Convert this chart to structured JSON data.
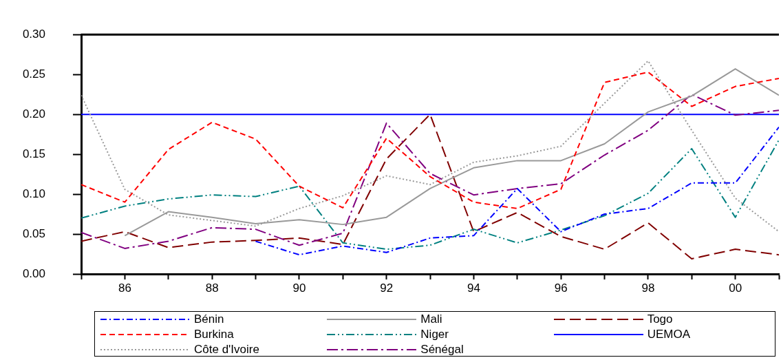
{
  "chart_data": {
    "type": "line",
    "x": [
      1985,
      1986,
      1987,
      1988,
      1989,
      1990,
      1991,
      1992,
      1993,
      1994,
      1995,
      1996,
      1997,
      1998,
      1999,
      2000,
      2001
    ],
    "series": [
      {
        "name": "Bénin",
        "color": "#0000ff",
        "line_style": "dashdot",
        "values": [
          null,
          null,
          null,
          null,
          0.041,
          0.024,
          0.035,
          0.027,
          0.045,
          0.048,
          0.107,
          0.053,
          0.075,
          0.082,
          0.114,
          0.114,
          0.184
        ]
      },
      {
        "name": "Burkina",
        "color": "#ff0000",
        "line_style": "dashed",
        "values": [
          0.112,
          0.09,
          0.156,
          0.19,
          0.169,
          0.11,
          0.083,
          0.17,
          0.122,
          0.09,
          0.082,
          0.106,
          0.24,
          0.253,
          0.21,
          0.235,
          0.245
        ]
      },
      {
        "name": "Côte d'Ivoire",
        "color": "#999999",
        "line_style": "dotted",
        "values": [
          0.224,
          0.106,
          0.074,
          0.067,
          0.06,
          0.082,
          0.098,
          0.123,
          0.112,
          0.14,
          0.148,
          0.16,
          0.214,
          0.267,
          0.18,
          0.095,
          0.053
        ]
      },
      {
        "name": "Mali",
        "color": "#999999",
        "line_style": "solid",
        "values": [
          null,
          0.048,
          0.078,
          0.071,
          0.063,
          0.068,
          0.062,
          0.071,
          0.107,
          0.133,
          0.142,
          0.142,
          0.163,
          0.203,
          0.223,
          0.257,
          0.224
        ]
      },
      {
        "name": "Niger",
        "color": "#008080",
        "line_style": "dashdotdot",
        "values": [
          0.07,
          0.085,
          0.094,
          0.099,
          0.097,
          0.11,
          0.039,
          0.031,
          0.036,
          0.056,
          0.039,
          0.055,
          0.073,
          0.101,
          0.157,
          0.071,
          0.168
        ]
      },
      {
        "name": "Sénégal",
        "color": "#800080",
        "line_style": "longdashdot",
        "values": [
          0.052,
          0.032,
          0.041,
          0.058,
          0.056,
          0.036,
          0.051,
          0.189,
          0.126,
          0.099,
          0.107,
          0.113,
          0.149,
          0.18,
          0.225,
          0.199,
          0.205
        ]
      },
      {
        "name": "Togo",
        "color": "#800000",
        "line_style": "longdash",
        "values": [
          0.041,
          0.053,
          0.033,
          0.04,
          0.042,
          0.045,
          0.037,
          0.144,
          0.2,
          0.053,
          0.077,
          0.047,
          0.031,
          0.064,
          0.019,
          0.031,
          0.024
        ]
      },
      {
        "name": "UEMOA",
        "color": "#0000ff",
        "line_style": "solid",
        "values": [
          0.2,
          0.2,
          0.2,
          0.2,
          0.2,
          0.2,
          0.2,
          0.2,
          0.2,
          0.2,
          0.2,
          0.2,
          0.2,
          0.2,
          0.2,
          0.2,
          0.2
        ]
      }
    ],
    "xlim": [
      1985,
      2001
    ],
    "xticks": [
      {
        "value": 1985,
        "label": null
      },
      {
        "value": 1986,
        "label": "86"
      },
      {
        "value": 1987,
        "label": null
      },
      {
        "value": 1988,
        "label": "88"
      },
      {
        "value": 1989,
        "label": null
      },
      {
        "value": 1990,
        "label": "90"
      },
      {
        "value": 1991,
        "label": null
      },
      {
        "value": 1992,
        "label": "92"
      },
      {
        "value": 1993,
        "label": null
      },
      {
        "value": 1994,
        "label": "94"
      },
      {
        "value": 1995,
        "label": null
      },
      {
        "value": 1996,
        "label": "96"
      },
      {
        "value": 1997,
        "label": null
      },
      {
        "value": 1998,
        "label": "98"
      },
      {
        "value": 1999,
        "label": null
      },
      {
        "value": 2000,
        "label": "00"
      },
      {
        "value": 2001,
        "label": null
      }
    ],
    "ylim": [
      0,
      0.3
    ],
    "yticks": [
      {
        "value": 0,
        "label": "0.00"
      },
      {
        "value": 0.05,
        "label": "0.05"
      },
      {
        "value": 0.1,
        "label": "0.10"
      },
      {
        "value": 0.15,
        "label": "0.15"
      },
      {
        "value": 0.2,
        "label": "0.20"
      },
      {
        "value": 0.25,
        "label": "0.25"
      },
      {
        "value": 0.3,
        "label": "0.30"
      }
    ],
    "grid": false,
    "legend": "bottom",
    "marker": "none"
  }
}
